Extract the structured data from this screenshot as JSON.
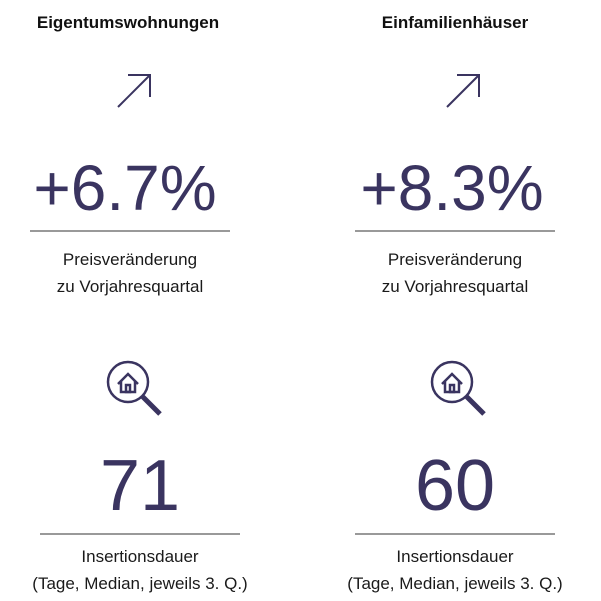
{
  "columns": [
    {
      "title": "Eigentumswohnungen",
      "change": "+6.7%",
      "change_label": [
        "Preisveränderung",
        "zu Vorjahresquartal"
      ],
      "days": "71",
      "days_label": [
        "Insertionsdauer",
        "(Tage, Median, jeweils 3. Q.)"
      ]
    },
    {
      "title": "Einfamilienhäuser",
      "change": "+8.3%",
      "change_label": [
        "Preisveränderung",
        "zu Vorjahresquartal"
      ],
      "days": "60",
      "days_label": [
        "Insertionsdauer",
        "(Tage, Median, jeweils 3. Q.)"
      ]
    }
  ]
}
